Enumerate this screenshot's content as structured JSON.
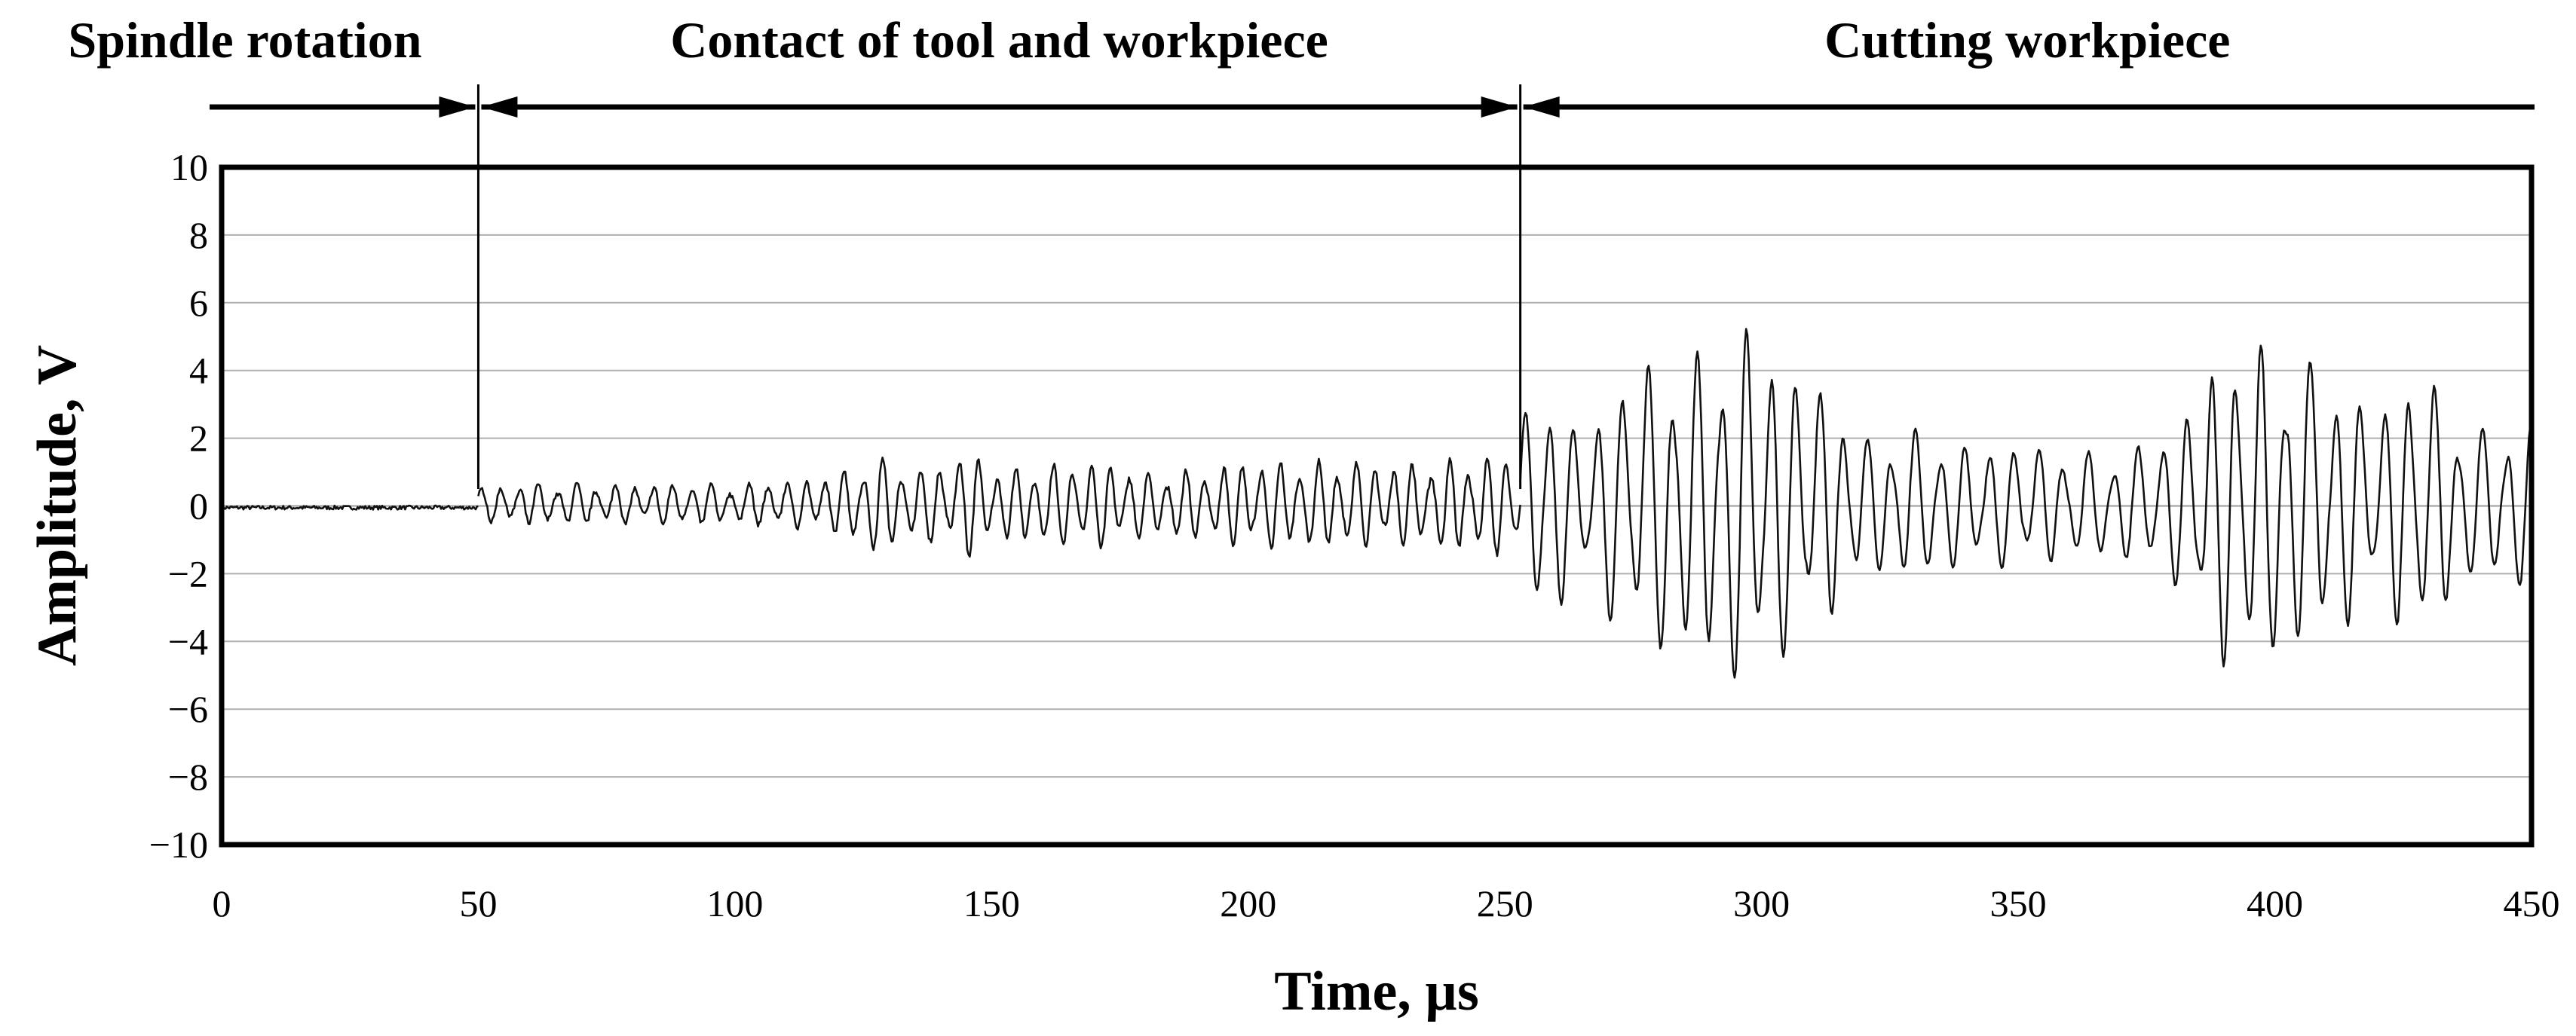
{
  "chart_data": {
    "type": "line",
    "xlabel": "Time, µs",
    "ylabel": "Amplitude, V",
    "xlim": [
      0,
      450
    ],
    "ylim": [
      -10,
      10
    ],
    "x_ticks": [
      0,
      50,
      100,
      150,
      200,
      250,
      300,
      350,
      400,
      450
    ],
    "y_ticks": [
      10,
      8,
      6,
      4,
      2,
      0,
      -2,
      -4,
      -6,
      -8,
      -10
    ],
    "y_tick_labels": [
      "10",
      "8",
      "6",
      "4",
      "2",
      "0",
      "−2",
      "−4",
      "−6",
      "−8",
      "−10"
    ],
    "grid": true,
    "phases": [
      {
        "label": "Spindle rotation",
        "start": 0,
        "end": 50
      },
      {
        "label": "Contact of tool and workpiece",
        "start": 50,
        "end": 253
      },
      {
        "label": "Cutting workpiece",
        "start": 253,
        "end": 450
      }
    ],
    "segments": [
      {
        "start": 0,
        "end": 50,
        "envelope": [
          [
            0,
            0.05
          ],
          [
            50,
            0.05
          ]
        ]
      },
      {
        "start": 50,
        "end": 253,
        "envelope": [
          [
            50,
            0.5
          ],
          [
            60,
            0.6
          ],
          [
            70,
            0.6
          ],
          [
            80,
            0.6
          ],
          [
            90,
            0.6
          ],
          [
            100,
            0.6
          ],
          [
            110,
            0.7
          ],
          [
            120,
            0.9
          ],
          [
            127,
            1.5
          ],
          [
            135,
            1.0
          ],
          [
            140,
            1.2
          ],
          [
            146,
            1.6
          ],
          [
            152,
            1.0
          ],
          [
            160,
            1.2
          ],
          [
            170,
            1.3
          ],
          [
            180,
            1.0
          ],
          [
            190,
            1.0
          ],
          [
            200,
            1.3
          ],
          [
            210,
            1.3
          ],
          [
            220,
            1.3
          ],
          [
            230,
            1.2
          ],
          [
            240,
            1.4
          ],
          [
            250,
            1.5
          ],
          [
            253,
            1.5
          ]
        ]
      },
      {
        "start": 253,
        "end": 450,
        "envelope": [
          [
            253,
            2.5
          ],
          [
            258,
            3.8
          ],
          [
            265,
            2.0
          ],
          [
            272,
            3.8
          ],
          [
            280,
            4.5
          ],
          [
            288,
            4.6
          ],
          [
            296,
            5.6
          ],
          [
            304,
            4.5
          ],
          [
            312,
            3.6
          ],
          [
            320,
            2.0
          ],
          [
            330,
            2.3
          ],
          [
            340,
            1.8
          ],
          [
            350,
            1.9
          ],
          [
            360,
            1.6
          ],
          [
            370,
            1.6
          ],
          [
            380,
            2.2
          ],
          [
            390,
            4.8
          ],
          [
            398,
            4.8
          ],
          [
            406,
            4.4
          ],
          [
            414,
            3.6
          ],
          [
            420,
            2.8
          ],
          [
            428,
            4.4
          ],
          [
            435,
            2.6
          ],
          [
            442,
            2.2
          ],
          [
            450,
            2.6
          ]
        ]
      }
    ]
  }
}
